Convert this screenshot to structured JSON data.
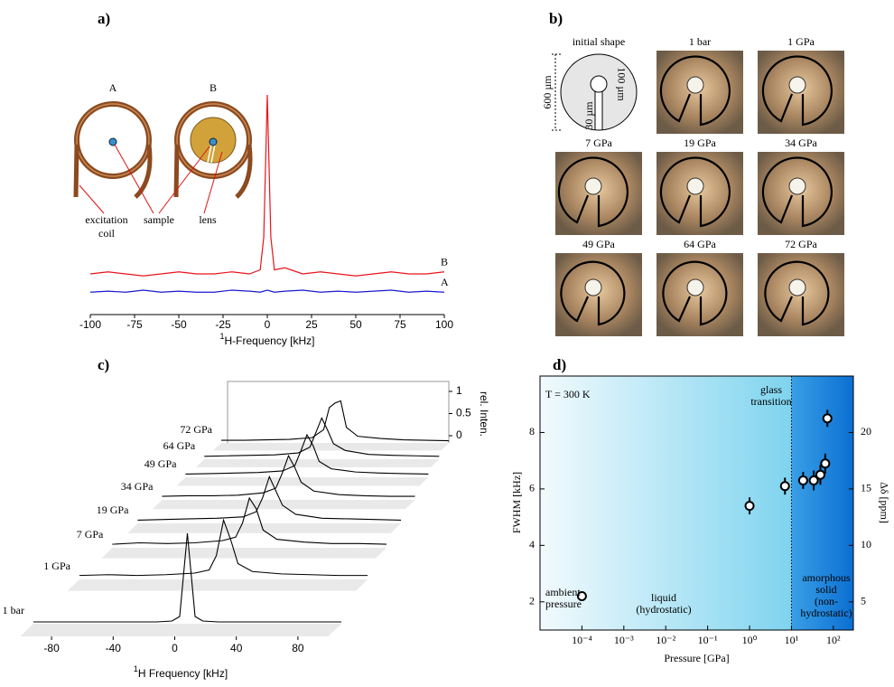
{
  "figure_b": {
    "panel_label": "b)",
    "frames": [
      "initial shape",
      "1 bar",
      "1 GPa",
      "7 GPa",
      "19 GPa",
      "34 GPa",
      "49 GPa",
      "64 GPa",
      "72 GPa"
    ],
    "dimensions": [
      "600 µm",
      "100 µm",
      "30 µm"
    ]
  },
  "chart_data": [
    {
      "type": "line",
      "panel_label": "a)",
      "xlabel_sup": "1",
      "xlabel": "H-Frequency [kHz]",
      "xlim": [
        -100,
        100
      ],
      "xticks": [
        -100,
        -75,
        -50,
        -25,
        0,
        25,
        50,
        75,
        100
      ],
      "ylim": [
        0,
        1
      ],
      "x": [
        -100,
        -90,
        -80,
        -70,
        -60,
        -50,
        -40,
        -30,
        -20,
        -10,
        -4,
        -2,
        0,
        2,
        4,
        10,
        20,
        30,
        40,
        50,
        60,
        70,
        80,
        90,
        100
      ],
      "series": [
        {
          "name": "B",
          "color": "#e8141c",
          "values": [
            0.12,
            0.13,
            0.12,
            0.11,
            0.12,
            0.13,
            0.12,
            0.12,
            0.13,
            0.12,
            0.14,
            0.3,
            1.0,
            0.3,
            0.14,
            0.15,
            0.12,
            0.13,
            0.12,
            0.11,
            0.12,
            0.13,
            0.12,
            0.12,
            0.13
          ]
        },
        {
          "name": "A",
          "color": "#1a1ad0",
          "values": [
            0.03,
            0.035,
            0.03,
            0.04,
            0.03,
            0.035,
            0.03,
            0.03,
            0.04,
            0.035,
            0.03,
            0.035,
            0.04,
            0.035,
            0.03,
            0.035,
            0.04,
            0.03,
            0.035,
            0.03,
            0.035,
            0.04,
            0.03,
            0.035,
            0.03
          ]
        }
      ],
      "annotations": {
        "coil_labels": [
          "A",
          "B"
        ],
        "excitation": [
          "excitation",
          "coil"
        ],
        "sample": "sample",
        "lens": "lens"
      }
    },
    {
      "type": "waterfall",
      "panel_label": "c)",
      "xlabel_sup": "1",
      "xlabel": "H Frequency [kHz]",
      "xlim": [
        -100,
        100
      ],
      "xticks": [
        -80,
        -40,
        0,
        40,
        80
      ],
      "zlabel": "rel. Inten.",
      "zlim": [
        0,
        1
      ],
      "zticks": [
        0,
        0.5,
        1
      ],
      "x": [
        -100,
        -80,
        -60,
        -40,
        -20,
        -10,
        -5,
        0,
        5,
        10,
        20,
        40,
        60,
        80,
        100
      ],
      "series": [
        {
          "name": "1 bar",
          "color": "#000000",
          "values": [
            0.02,
            0.02,
            0.02,
            0.02,
            0.02,
            0.03,
            0.08,
            1.0,
            0.08,
            0.03,
            0.02,
            0.02,
            0.02,
            0.02,
            0.02
          ]
        },
        {
          "name": "1 GPa",
          "color": "#000000",
          "values": [
            0.05,
            0.06,
            0.05,
            0.06,
            0.08,
            0.12,
            0.3,
            0.75,
            0.5,
            0.2,
            0.1,
            0.07,
            0.06,
            0.05,
            0.05
          ]
        },
        {
          "name": "7 GPa",
          "color": "#000000",
          "values": [
            0.05,
            0.07,
            0.06,
            0.07,
            0.1,
            0.15,
            0.35,
            0.7,
            0.55,
            0.25,
            0.12,
            0.08,
            0.06,
            0.06,
            0.05
          ]
        },
        {
          "name": "19 GPa",
          "color": "#000000",
          "values": [
            0.05,
            0.06,
            0.07,
            0.08,
            0.1,
            0.18,
            0.4,
            0.72,
            0.5,
            0.28,
            0.14,
            0.08,
            0.07,
            0.06,
            0.05
          ]
        },
        {
          "name": "34 GPa",
          "color": "#000000",
          "values": [
            0.06,
            0.07,
            0.07,
            0.08,
            0.12,
            0.2,
            0.45,
            0.75,
            0.55,
            0.3,
            0.15,
            0.09,
            0.07,
            0.06,
            0.06
          ]
        },
        {
          "name": "49 GPa",
          "color": "#000000",
          "values": [
            0.06,
            0.07,
            0.08,
            0.09,
            0.12,
            0.22,
            0.5,
            0.8,
            0.6,
            0.3,
            0.16,
            0.1,
            0.08,
            0.07,
            0.06
          ]
        },
        {
          "name": "64 GPa",
          "color": "#000000",
          "values": [
            0.06,
            0.07,
            0.08,
            0.09,
            0.13,
            0.25,
            0.55,
            0.85,
            0.6,
            0.32,
            0.18,
            0.1,
            0.08,
            0.07,
            0.06
          ]
        },
        {
          "name": "72 GPa",
          "color": "#000000",
          "values": [
            0.06,
            0.06,
            0.07,
            0.08,
            0.12,
            0.3,
            0.8,
            0.9,
            0.95,
            0.35,
            0.15,
            0.1,
            0.07,
            0.06,
            0.05
          ]
        }
      ]
    },
    {
      "type": "scatter",
      "panel_label": "d)",
      "xlabel": "Pressure [GPa]",
      "ylabel": "FWHM [kHz]",
      "y2label": "Δδ [ppm]",
      "xscale": "log",
      "xlim": [
        1e-05,
        300
      ],
      "xticks": [
        {
          "value": 0.0001,
          "label": "10⁻⁴"
        },
        {
          "value": 0.001,
          "label": "10⁻³"
        },
        {
          "value": 0.01,
          "label": "10⁻²"
        },
        {
          "value": 0.1,
          "label": "10⁻¹"
        },
        {
          "value": 1,
          "label": "10⁰"
        },
        {
          "value": 10,
          "label": "10¹"
        },
        {
          "value": 100,
          "label": "10²"
        }
      ],
      "ylim": [
        1,
        10
      ],
      "yticks": [
        2,
        4,
        6,
        8
      ],
      "y2lim": [
        2.5,
        25
      ],
      "y2ticks": [
        5,
        10,
        15,
        20
      ],
      "x": [
        0.0001,
        1,
        7,
        19,
        34,
        49,
        64,
        72
      ],
      "values": [
        2.2,
        5.4,
        6.1,
        6.3,
        6.3,
        6.5,
        6.9,
        8.5
      ],
      "errors": [
        0.15,
        0.3,
        0.3,
        0.3,
        0.35,
        0.35,
        0.35,
        0.3
      ],
      "vline": 10,
      "annotations": {
        "temperature": "T = 300 K",
        "glass": [
          "glass",
          "transition"
        ],
        "ambient": [
          "ambient",
          "pressure"
        ],
        "liquid": [
          "liquid",
          "(hydrostatic)"
        ],
        "solid": [
          "amorphous",
          "solid",
          "(non-",
          "hydrostatic)"
        ]
      }
    }
  ]
}
